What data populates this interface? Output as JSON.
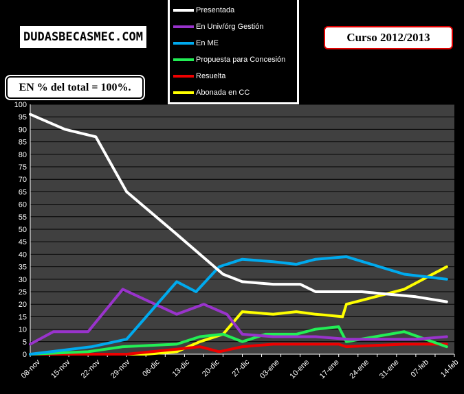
{
  "brand": "DUDASBECASMEC.COM",
  "course_label": "Curso 2012/2013",
  "note_label": "EN % del total = 100%.",
  "chart_data": {
    "type": "line",
    "categories": [
      "08-nov",
      "15-nov",
      "22-nov",
      "29-nov",
      "06-dic",
      "13-dic",
      "20-dic",
      "27-dic",
      "03-ene",
      "10-ene",
      "17-ene",
      "24-ene",
      "31-ene",
      "07-feb",
      "14-feb"
    ],
    "x_tick_labels": [
      "08-nov",
      "15-nov",
      "22-nov",
      "29-nov",
      "06-dic",
      "13-dic",
      "20-dic",
      "27-dic",
      "03-ene",
      "10-ene",
      "17-ene",
      "24-ene",
      "31-ene",
      "07-feb",
      "14-feb"
    ],
    "x": [
      0,
      1,
      2,
      3,
      4,
      5,
      6,
      7,
      8,
      9,
      10,
      11,
      12,
      13,
      14,
      15,
      16,
      17,
      18,
      19,
      20,
      21,
      22,
      23,
      24,
      25,
      26,
      27,
      28,
      29,
      30,
      31,
      32,
      33,
      34,
      35
    ],
    "ylim": [
      0,
      100
    ],
    "y_ticks": [
      0,
      5,
      10,
      15,
      20,
      25,
      30,
      35,
      40,
      45,
      50,
      55,
      60,
      65,
      70,
      75,
      80,
      85,
      90,
      95,
      100
    ],
    "grid": true,
    "legend_position": "top-center",
    "plot_background": "#404040",
    "series": [
      {
        "name": "Presentada",
        "color": "#ffffff",
        "points": [
          [
            0,
            96
          ],
          [
            1.8,
            90
          ],
          [
            3.4,
            87
          ],
          [
            5,
            65
          ],
          [
            7.6,
            48
          ],
          [
            10,
            32
          ],
          [
            11,
            29
          ],
          [
            12.6,
            28
          ],
          [
            14,
            28
          ],
          [
            14.8,
            25
          ],
          [
            17.2,
            25
          ],
          [
            20,
            23
          ],
          [
            21.6,
            21
          ]
        ]
      },
      {
        "name": "En Univ/órg Gestión",
        "color": "#9933cc",
        "points": [
          [
            0,
            4
          ],
          [
            1.2,
            9
          ],
          [
            3,
            9
          ],
          [
            4.8,
            26
          ],
          [
            7.6,
            16
          ],
          [
            9,
            20
          ],
          [
            10.2,
            16
          ],
          [
            11,
            8
          ],
          [
            12.6,
            7
          ],
          [
            14,
            7
          ],
          [
            14.8,
            7
          ],
          [
            16.5,
            6
          ],
          [
            20,
            6
          ],
          [
            21.6,
            7
          ]
        ]
      },
      {
        "name": "En ME",
        "color": "#00aaee",
        "points": [
          [
            0,
            0
          ],
          [
            3.2,
            3
          ],
          [
            5,
            6
          ],
          [
            7.6,
            29
          ],
          [
            8.6,
            25
          ],
          [
            9.8,
            35
          ],
          [
            11,
            38
          ],
          [
            12.6,
            37
          ],
          [
            13.8,
            36
          ],
          [
            14.8,
            38
          ],
          [
            16.4,
            39
          ],
          [
            19.4,
            32
          ],
          [
            21.6,
            30
          ]
        ]
      },
      {
        "name": "Propuesta para  Concesión",
        "color": "#22ee55",
        "points": [
          [
            0,
            0
          ],
          [
            3,
            1
          ],
          [
            4.8,
            3
          ],
          [
            7.6,
            4
          ],
          [
            8.8,
            7
          ],
          [
            10,
            8
          ],
          [
            11,
            5
          ],
          [
            12.2,
            8
          ],
          [
            13.8,
            8
          ],
          [
            14.8,
            10
          ],
          [
            16,
            11
          ],
          [
            16.4,
            5
          ],
          [
            19.4,
            9
          ],
          [
            21.6,
            3
          ]
        ]
      },
      {
        "name": "Resuelta",
        "color": "#ee0000",
        "points": [
          [
            0,
            0
          ],
          [
            5,
            0
          ],
          [
            7.6,
            2
          ],
          [
            8.8,
            3
          ],
          [
            9.8,
            1
          ],
          [
            11,
            3
          ],
          [
            12.6,
            4
          ],
          [
            16,
            4
          ],
          [
            16.4,
            3
          ],
          [
            19.4,
            4
          ],
          [
            21.6,
            4
          ]
        ]
      },
      {
        "name": "Abonada en CC",
        "color": "#ffff00",
        "points": [
          [
            0,
            0
          ],
          [
            6,
            0
          ],
          [
            7.6,
            1
          ],
          [
            8.8,
            5
          ],
          [
            10,
            8
          ],
          [
            11,
            17
          ],
          [
            12.6,
            16
          ],
          [
            13.8,
            17
          ],
          [
            14.8,
            16
          ],
          [
            16.2,
            15
          ],
          [
            16.4,
            20
          ],
          [
            19.4,
            26
          ],
          [
            21.6,
            35
          ]
        ]
      }
    ]
  }
}
